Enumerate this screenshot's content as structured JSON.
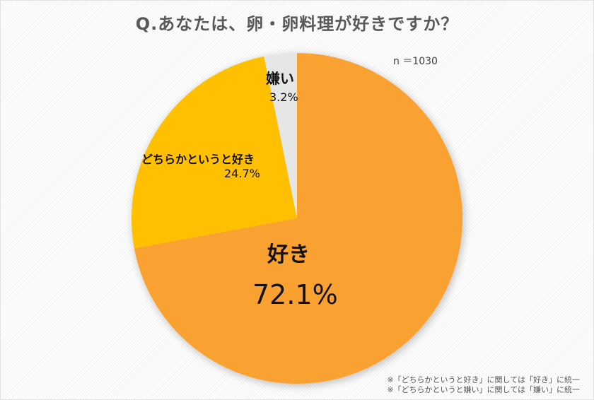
{
  "title": "Q.あなたは、卵・卵料理が好きですか？",
  "sample_size": "n ＝1030",
  "colors": {
    "like": "#F9A233",
    "somewhat_like": "#FEC000",
    "dislike": "#E6E6E6",
    "title": "#595959"
  },
  "labels": {
    "like": {
      "name": "好き",
      "pct": "72.1%"
    },
    "somewhat_like": {
      "name": "どちらかというと好き",
      "pct": "24.7%"
    },
    "dislike": {
      "name": "嫌い",
      "pct": "3.2%"
    }
  },
  "notes": [
    "※「どちらかというと好き」に関しては「好き」に統一",
    "※「どちらかというと嫌い」に関しては「嫌い」に統一"
  ],
  "chart_data": {
    "type": "pie",
    "title": "Q.あなたは、卵・卵料理が好きですか？",
    "subtitle": "n ＝1030",
    "categories": [
      "好き",
      "どちらかというと好き",
      "嫌い"
    ],
    "values": [
      72.1,
      24.7,
      3.2
    ],
    "unit": "%",
    "start_angle": "12 o'clock, clockwise",
    "colors": [
      "#F9A233",
      "#FEC000",
      "#E6E6E6"
    ],
    "annotations": [
      "※「どちらかというと好き」に関しては「好き」に統一",
      "※「どちらかというと嫌い」に関しては「嫌い」に統一"
    ],
    "legend": "none (data labels on slices)"
  }
}
